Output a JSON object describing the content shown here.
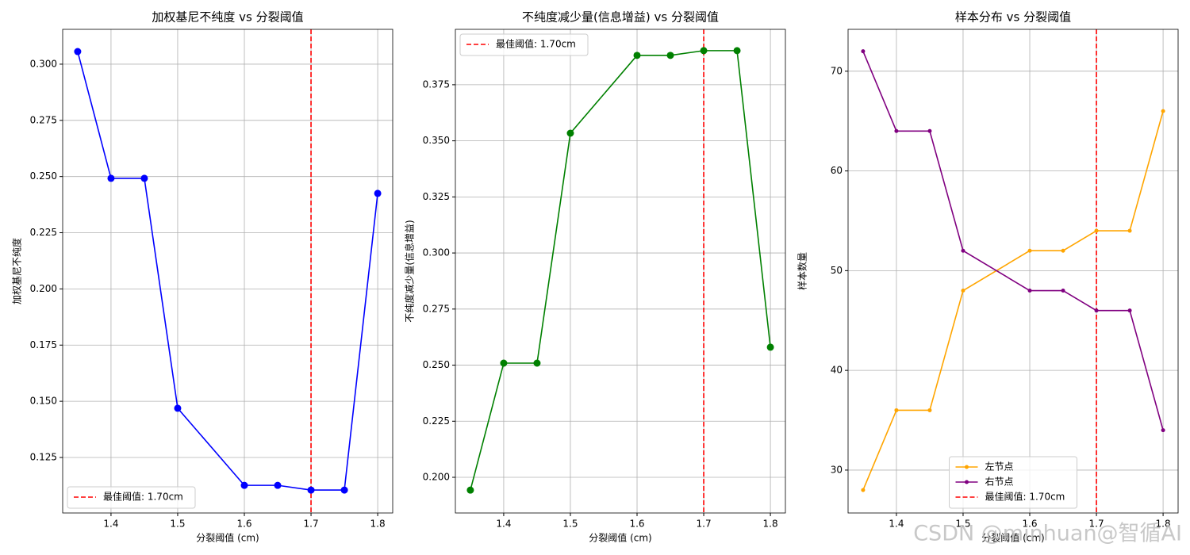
{
  "chart_data": [
    {
      "type": "line",
      "title": "加权基尼不纯度 vs 分裂阈值",
      "xlabel": "分裂阈值 (cm)",
      "ylabel": "加权基尼不纯度",
      "x": [
        1.35,
        1.4,
        1.45,
        1.5,
        1.6,
        1.65,
        1.7,
        1.75,
        1.8
      ],
      "series": [
        {
          "color": "#0000ff",
          "values": [
            0.3056,
            0.2492,
            0.2492,
            0.1469,
            0.1126,
            0.1126,
            0.1105,
            0.1105,
            0.2425
          ]
        }
      ],
      "marker": "o",
      "xlim": [
        1.3275,
        1.8225
      ],
      "xticks": [
        1.4,
        1.5,
        1.6,
        1.7,
        1.8
      ],
      "ylim": [
        0.1003,
        0.3155
      ],
      "yticks": [
        0.125,
        {
          "value": 0.15,
          "label": "0.150"
        },
        0.175,
        {
          "value": 0.2,
          "label": "0.200"
        },
        0.225,
        {
          "value": 0.25,
          "label": "0.250"
        },
        0.275,
        {
          "value": 0.3,
          "label": "0.300"
        }
      ],
      "vline": {
        "value": 1.7,
        "label": "最佳阈值: 1.70cm",
        "color": "#ff0000"
      },
      "grid": true,
      "legend": "lower left"
    },
    {
      "type": "line",
      "title": "不纯度减少量(信息增益) vs 分裂阈值",
      "xlabel": "分裂阈值 (cm)",
      "ylabel": "不纯度减少量(信息增益)",
      "x": [
        1.35,
        1.4,
        1.45,
        1.5,
        1.6,
        1.65,
        1.7,
        1.75,
        1.8
      ],
      "series": [
        {
          "color": "#008000",
          "values": [
            0.1943,
            0.2509,
            0.2509,
            0.3534,
            0.3881,
            0.3881,
            0.3902,
            0.3902,
            0.258
          ]
        }
      ],
      "marker": "o",
      "xlim": [
        1.3275,
        1.8225
      ],
      "xticks": [
        1.4,
        1.5,
        1.6,
        1.7,
        1.8
      ],
      "ylim": [
        0.1841,
        0.3997
      ],
      "yticks": [
        {
          "value": 0.2,
          "label": "0.200"
        },
        0.225,
        {
          "value": 0.25,
          "label": "0.250"
        },
        0.275,
        {
          "value": 0.3,
          "label": "0.300"
        },
        0.325,
        {
          "value": 0.35,
          "label": "0.350"
        },
        0.375
      ],
      "vline": {
        "value": 1.7,
        "label": "最佳阈值: 1.70cm",
        "color": "#ff0000"
      },
      "grid": true,
      "legend": "upper left"
    },
    {
      "type": "line",
      "title": "样本分布 vs 分裂阈值",
      "xlabel": "分裂阈值 (cm)",
      "ylabel": "样本数量",
      "x": [
        1.35,
        1.4,
        1.45,
        1.5,
        1.6,
        1.65,
        1.7,
        1.75,
        1.8
      ],
      "series": [
        {
          "name": "左节点",
          "color": "#ffa500",
          "values": [
            28,
            36,
            36,
            48,
            52,
            52,
            54,
            54,
            66
          ]
        },
        {
          "name": "右节点",
          "color": "#800080",
          "values": [
            72,
            64,
            64,
            52,
            48,
            48,
            46,
            46,
            34
          ]
        }
      ],
      "marker": ".",
      "xlim": [
        1.3275,
        1.8225
      ],
      "xticks": [
        1.4,
        1.5,
        1.6,
        1.7,
        1.8
      ],
      "ylim": [
        25.7,
        74.2
      ],
      "yticks": [
        30,
        40,
        50,
        60,
        70
      ],
      "vline": {
        "value": 1.7,
        "label": "最佳阈值: 1.70cm",
        "color": "#ff0000"
      },
      "grid": true,
      "legend": "lower center"
    }
  ],
  "watermark": "CSDN @minhuan@智循AI"
}
